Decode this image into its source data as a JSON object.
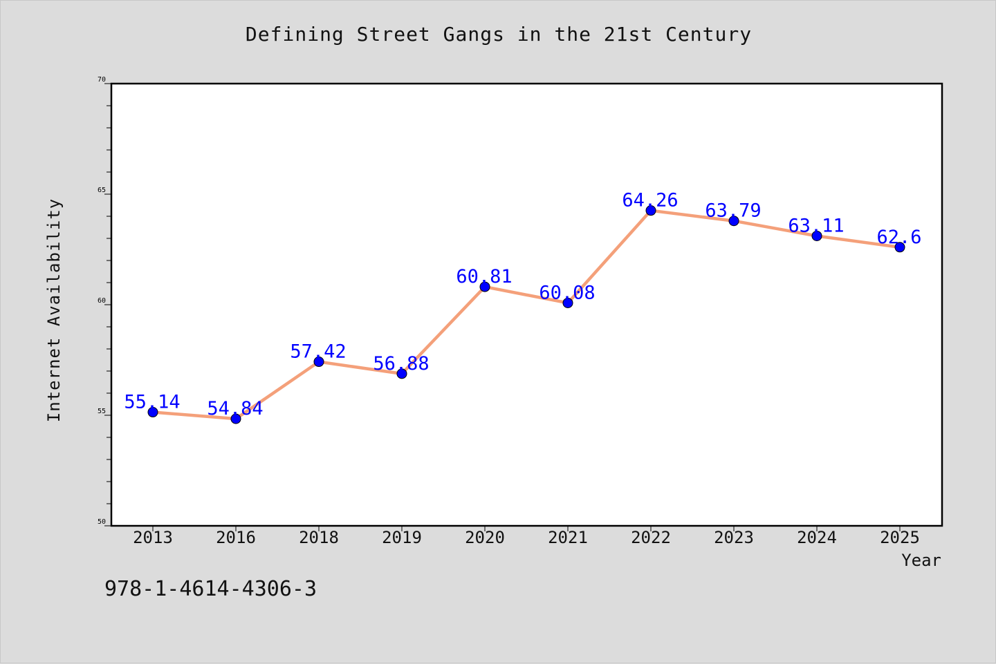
{
  "chart_data": {
    "type": "line",
    "title": "Defining Street Gangs in the 21st Century",
    "xlabel": "Year",
    "ylabel": "Internet Availability",
    "categories": [
      "2013",
      "2016",
      "2018",
      "2019",
      "2020",
      "2021",
      "2022",
      "2023",
      "2024",
      "2025"
    ],
    "series": [
      {
        "values": [
          55.14,
          54.84,
          57.42,
          56.88,
          60.81,
          60.08,
          64.26,
          63.79,
          63.11,
          62.6
        ],
        "labels": [
          "55.14",
          "54.84",
          "57.42",
          "56.88",
          "60.81",
          "60.08",
          "64.26",
          "63.79",
          "63.11",
          "62.6"
        ]
      }
    ],
    "ylim": [
      50,
      70
    ],
    "yticks": [
      50,
      55,
      60,
      65,
      70
    ],
    "grid": false,
    "colors": {
      "line": "#f4a07a",
      "marker": "#0000ff",
      "label": "#0000ff"
    }
  },
  "annotation": "978-1-4614-4306-3"
}
